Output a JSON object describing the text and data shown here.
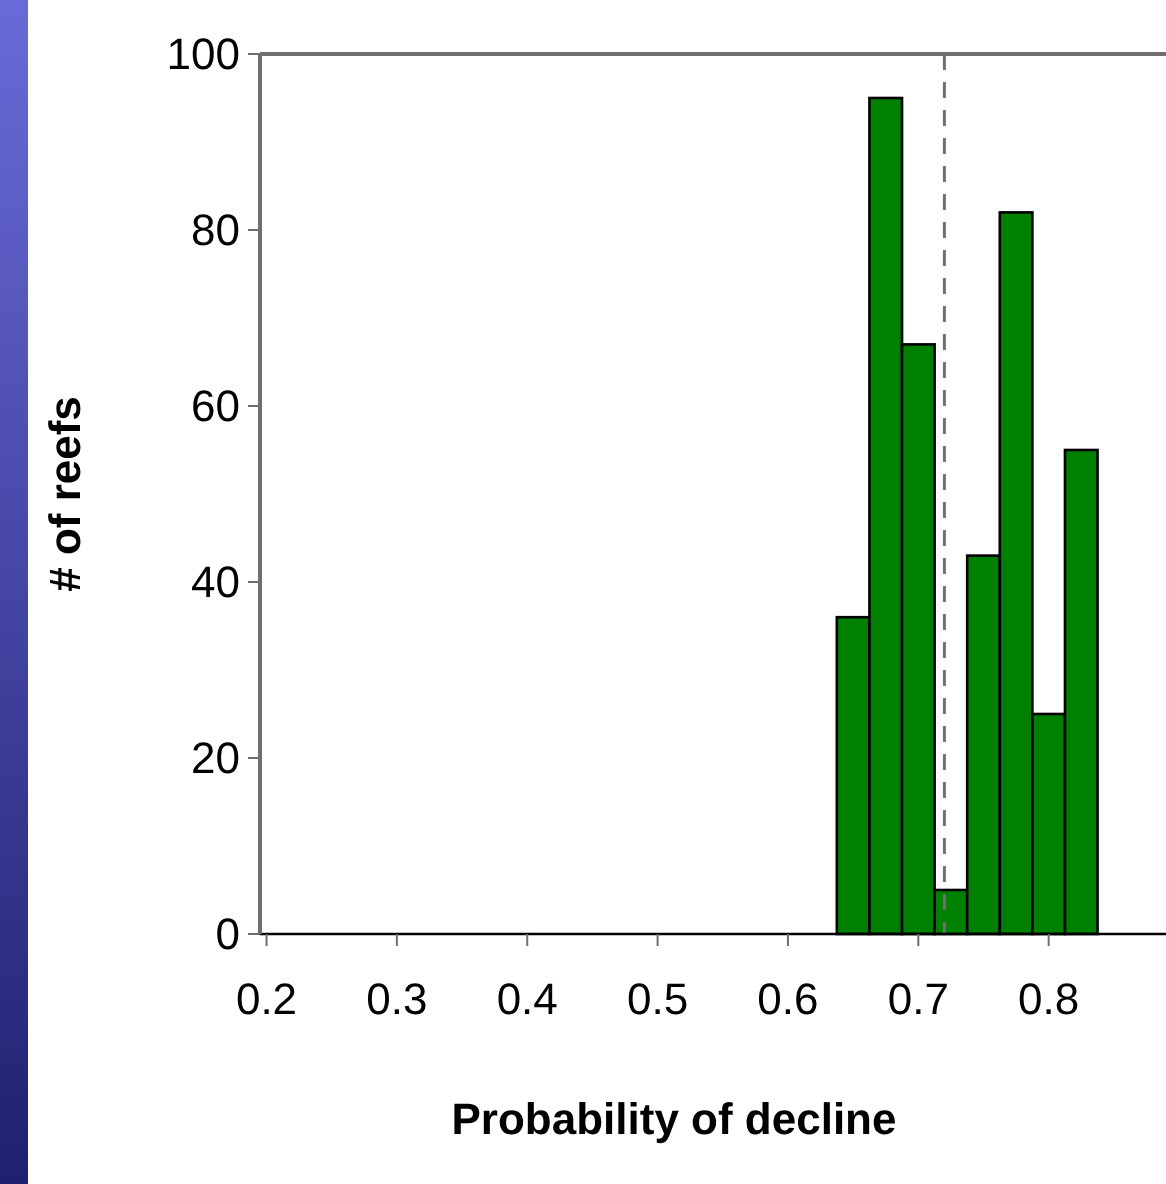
{
  "chart_data": {
    "type": "histogram",
    "xlabel": "Probability of decline",
    "ylabel": "# of reefs",
    "bins": [
      0.6375,
      0.6625,
      0.6875,
      0.7125,
      0.7375,
      0.7625,
      0.7875,
      0.8125,
      0.8375
    ],
    "values": [
      36,
      95,
      67,
      5,
      43,
      82,
      25,
      55
    ],
    "color": "#008000",
    "xlim": [
      0.195,
      0.89
    ],
    "xticks": [
      0.2,
      0.3,
      0.4,
      0.5,
      0.6,
      0.7,
      0.8
    ],
    "ylim": [
      0,
      100
    ],
    "yticks": [
      0,
      20,
      40,
      60,
      80,
      100
    ],
    "grid": false,
    "ref_lines": [
      {
        "axis": "x",
        "value": 0.72,
        "color": "#707070",
        "line_style": "dashed"
      }
    ]
  }
}
